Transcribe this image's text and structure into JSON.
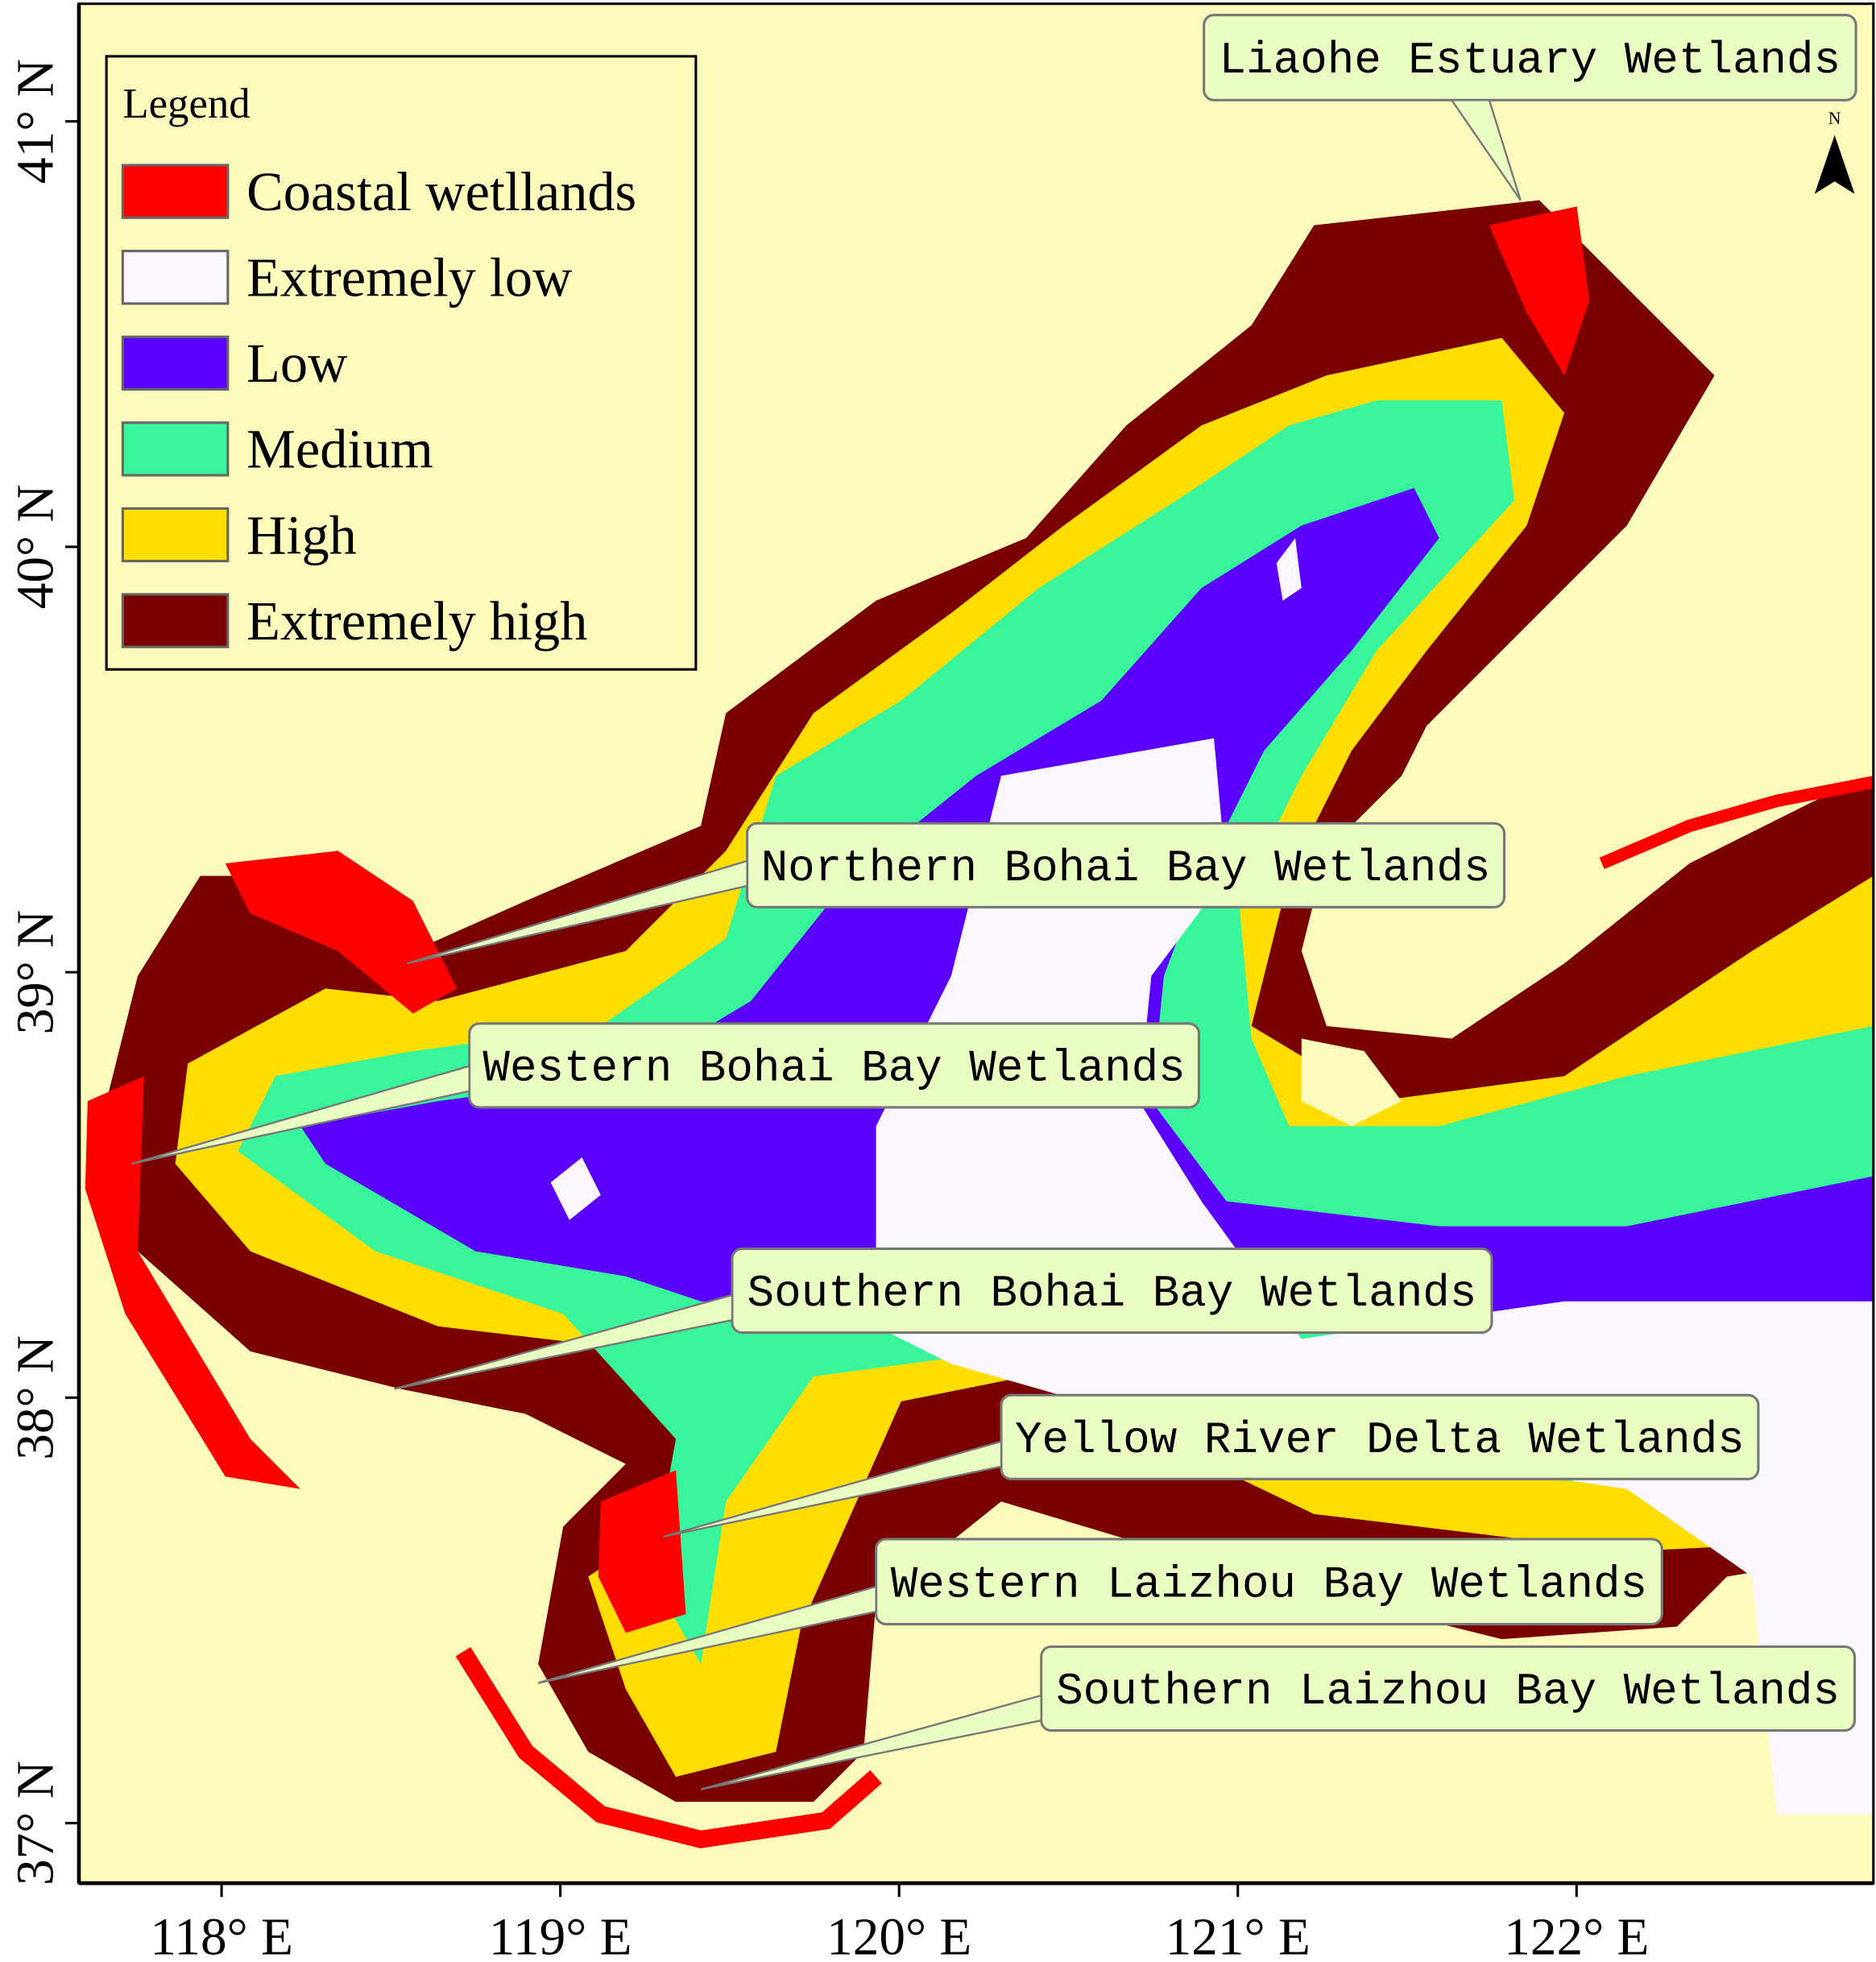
{
  "legend": {
    "title": "Legend",
    "items": [
      {
        "label": "Coastal wetllands",
        "color": "#ff0000"
      },
      {
        "label": "Extremely low",
        "color": "#f9f6ff"
      },
      {
        "label": "Low",
        "color": "#5b00ff"
      },
      {
        "label": "Medium",
        "color": "#38f59c"
      },
      {
        "label": "High",
        "color": "#ffdd00"
      },
      {
        "label": "Extremely high",
        "color": "#7a0000"
      }
    ]
  },
  "axes": {
    "latitude": [
      "37° N",
      "38° N",
      "39° N",
      "40° N",
      "41° N"
    ],
    "longitude": [
      "118° E",
      "119° E",
      "120° E",
      "121° E",
      "122° E"
    ]
  },
  "callouts": [
    "Liaohe Estuary Wetlands",
    "Northern Bohai Bay Wetlands",
    "Western Bohai Bay Wetlands",
    "Southern Bohai Bay Wetlands",
    "Yellow River Delta Wetlands",
    "Western Laizhou Bay Wetlands",
    "Southern Laizhou Bay Wetlands"
  ],
  "north_arrow": "N"
}
